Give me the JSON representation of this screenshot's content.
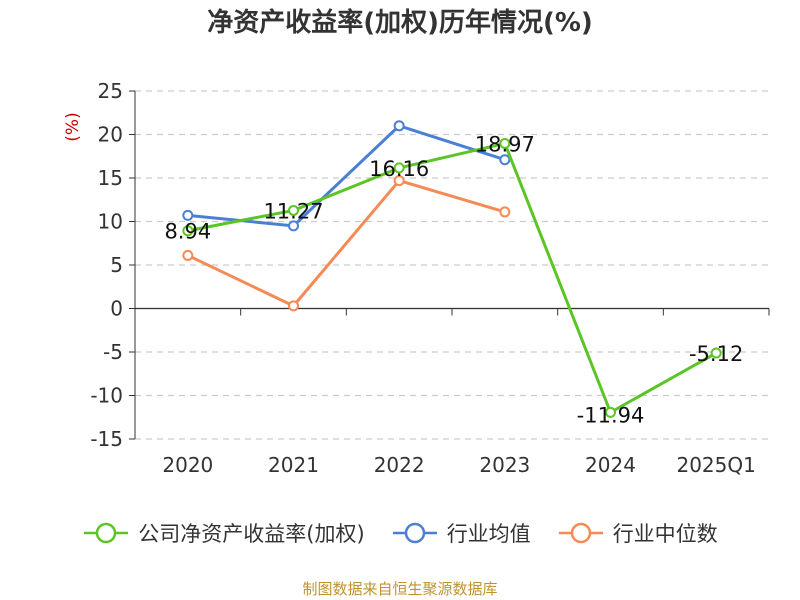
{
  "chart_data": {
    "type": "line",
    "title": "净资产收益率(加权)历年情况(%)",
    "ylabel": "(%)",
    "xlabel": "",
    "categories": [
      "2020",
      "2021",
      "2022",
      "2023",
      "2024",
      "2025Q1"
    ],
    "ylim": [
      -15,
      25
    ],
    "yticks": [
      25,
      20,
      15,
      10,
      5,
      0,
      -5,
      -10,
      -15
    ],
    "ytick_labels": [
      "25",
      "20",
      "15",
      "10",
      "5",
      "0",
      "-5",
      "-10",
      "-15"
    ],
    "grid": true,
    "legend_position": "bottom",
    "series": [
      {
        "name": "公司净资产收益率(加权)",
        "color": "#5cc526",
        "values": [
          8.94,
          11.27,
          16.16,
          18.97,
          -11.94,
          -5.12
        ],
        "labels": [
          "8.94",
          "11.27",
          "16.16",
          "18.97",
          "-11.94",
          "-5.12"
        ]
      },
      {
        "name": "行业均值",
        "color": "#4b7fd6",
        "values": [
          10.7,
          9.5,
          21.0,
          17.1,
          null,
          null
        ]
      },
      {
        "name": "行业中位数",
        "color": "#f48b55",
        "values": [
          6.1,
          0.3,
          14.7,
          11.1,
          null,
          null
        ]
      }
    ]
  },
  "source": "制图数据来自恒生聚源数据库"
}
